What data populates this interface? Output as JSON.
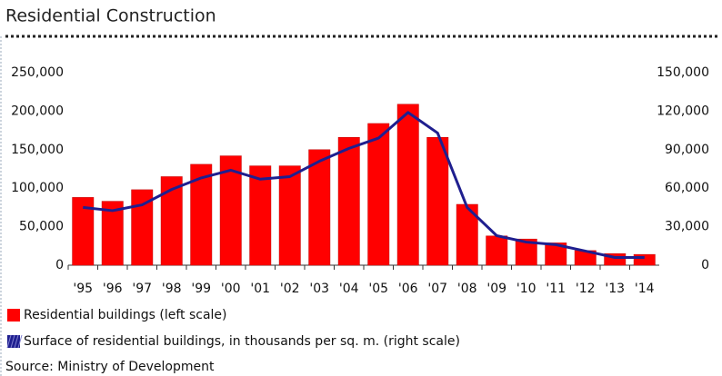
{
  "chart_data": {
    "type": "bar",
    "title": "Residential Construction",
    "source": "Source: Ministry of Development",
    "categories": [
      "'95",
      "'96",
      "'97",
      "'98",
      "'99",
      "'00",
      "'01",
      "'02",
      "'03",
      "'04",
      "'05",
      "'06",
      "'07",
      "'08",
      "'09",
      "'10",
      "'11",
      "'12",
      "'13",
      "'14"
    ],
    "series": [
      {
        "name": "Residential buildings (left scale)",
        "color": "#ff0000",
        "type": "bar",
        "values": [
          88000,
          83000,
          98000,
          115000,
          131000,
          142000,
          129000,
          129000,
          150000,
          166000,
          184000,
          209000,
          166000,
          79000,
          38000,
          34000,
          29000,
          19000,
          15000,
          14000
        ]
      },
      {
        "name": "Surface of residential buildings, in thousands per sq. m. (right scale)",
        "color": "#1f1f8f",
        "type": "line",
        "axis": "y2",
        "values": [
          45000,
          42500,
          47000,
          59000,
          68000,
          74000,
          67000,
          69000,
          81000,
          91000,
          99000,
          119000,
          103000,
          45000,
          23000,
          18000,
          16000,
          11000,
          6000,
          6000
        ]
      }
    ],
    "ylim": [
      0,
      250000
    ],
    "yticks": [
      0,
      {
        "value": 50000,
        "label": "50,000"
      },
      {
        "value": 100000,
        "label": "100,000"
      },
      {
        "value": 150000,
        "label": "150,000"
      },
      {
        "value": 200000,
        "label": "200,000"
      },
      {
        "value": 250000,
        "label": "250,000"
      }
    ],
    "y2lim": [
      0,
      150000
    ],
    "y2ticks": [
      0,
      {
        "value": 30000,
        "label": "30,000"
      },
      {
        "value": 60000,
        "label": "60,000"
      },
      {
        "value": 90000,
        "label": "90,000"
      },
      {
        "value": 120000,
        "label": "120,000"
      },
      {
        "value": 150000,
        "label": "150,000"
      }
    ],
    "grid": false
  }
}
